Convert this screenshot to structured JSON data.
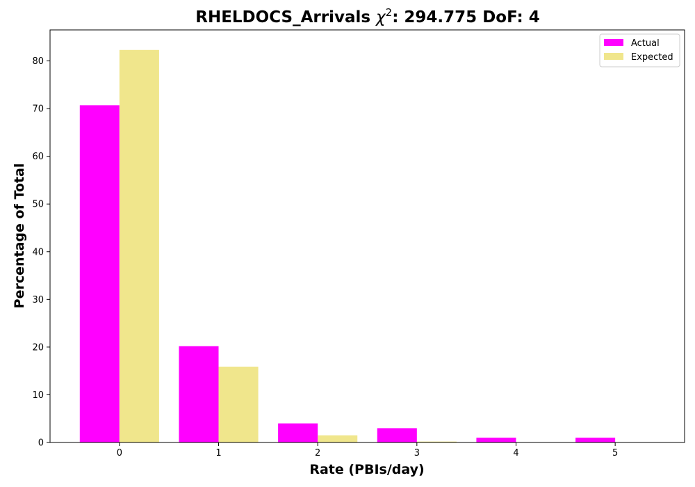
{
  "chart_data": {
    "type": "bar",
    "title": "RHELDOCS_Arrivals",
    "title_chi_symbol": "χ",
    "title_chi_exp": "2",
    "title_rest": ": 294.775 DoF: 4",
    "xlabel": "Rate (PBIs/day)",
    "ylabel": "Percentage of Total",
    "categories": [
      "0",
      "1",
      "2",
      "3",
      "4",
      "5"
    ],
    "x": [
      0,
      1,
      2,
      3,
      4,
      5
    ],
    "xlim": [
      -0.7,
      5.7
    ],
    "ylim": [
      0,
      86.5
    ],
    "yticks": [
      0,
      10,
      20,
      30,
      40,
      50,
      60,
      70,
      80
    ],
    "grid": false,
    "legend_position": "top-right",
    "series": [
      {
        "name": "Actual",
        "color": "#ff00ff",
        "values": [
          70.7,
          20.2,
          4.0,
          3.0,
          1.0,
          1.0
        ]
      },
      {
        "name": "Expected",
        "color": "#f0e68c",
        "values": [
          82.3,
          15.9,
          1.5,
          0.2,
          0.0,
          0.0
        ]
      }
    ]
  }
}
